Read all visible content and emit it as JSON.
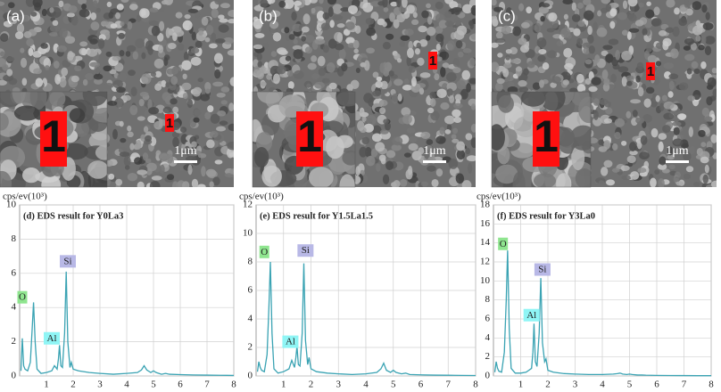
{
  "images": [
    {
      "label": "(a)",
      "marker": "1",
      "scale": "1μm"
    },
    {
      "label": "(b)",
      "marker": "1",
      "scale": "1μm"
    },
    {
      "label": "(c)",
      "marker": "1",
      "scale": "1μm"
    }
  ],
  "chart_data": [
    {
      "type": "line",
      "title": "(d) EDS result for Y0La3",
      "y_label": "cps/ev(10³)",
      "x": [
        0.05,
        0.1,
        0.15,
        0.2,
        0.3,
        0.4,
        0.47,
        0.52,
        0.58,
        0.65,
        0.8,
        1.0,
        1.2,
        1.3,
        1.4,
        1.45,
        1.49,
        1.54,
        1.6,
        1.68,
        1.74,
        1.8,
        1.88,
        1.93,
        2.0,
        2.2,
        2.6,
        3.0,
        3.5,
        4.0,
        4.4,
        4.55,
        4.65,
        4.75,
        4.9,
        5.0,
        5.1,
        5.3,
        5.45,
        5.6,
        6.0,
        6.5,
        7.0,
        7.5,
        8.0
      ],
      "series": [
        {
          "color": "#3aa3b3",
          "values": [
            0.3,
            2.2,
            0.6,
            0.4,
            0.3,
            0.8,
            2.8,
            4.3,
            2.0,
            0.4,
            0.15,
            0.2,
            0.3,
            0.6,
            0.4,
            1.0,
            1.8,
            0.6,
            0.5,
            2.5,
            6.1,
            2.0,
            0.5,
            0.8,
            0.4,
            0.3,
            0.2,
            0.15,
            0.1,
            0.15,
            0.2,
            0.35,
            0.6,
            0.35,
            0.2,
            0.3,
            0.2,
            0.1,
            0.15,
            0.1,
            0.08,
            0.06,
            0.05,
            0.04,
            0.03
          ]
        }
      ],
      "xlim": [
        0,
        8
      ],
      "ylim": [
        0,
        10
      ],
      "xticks": [
        1,
        2,
        3,
        4,
        5,
        6,
        7,
        8
      ],
      "yticks": [
        0,
        2,
        4,
        6,
        8,
        10
      ],
      "grid": true,
      "annotations": [
        {
          "text": "O",
          "color": "#8fe58f"
        },
        {
          "text": "Al",
          "color": "#8ff5f5"
        },
        {
          "text": "Si",
          "color": "#b8b8e6"
        }
      ]
    },
    {
      "type": "line",
      "title": "(e) EDS result for Y1.5La1.5",
      "y_label": "cps/ev(10³)",
      "x": [
        0.05,
        0.1,
        0.15,
        0.2,
        0.3,
        0.4,
        0.47,
        0.52,
        0.58,
        0.65,
        0.8,
        1.0,
        1.2,
        1.3,
        1.4,
        1.45,
        1.49,
        1.54,
        1.6,
        1.68,
        1.74,
        1.8,
        1.88,
        1.93,
        2.0,
        2.2,
        2.6,
        3.0,
        3.5,
        4.0,
        4.4,
        4.55,
        4.65,
        4.75,
        4.9,
        5.0,
        5.1,
        5.3,
        5.45,
        5.6,
        6.0,
        6.5,
        7.0,
        7.5,
        8.0
      ],
      "series": [
        {
          "color": "#3aa3b3",
          "values": [
            0.3,
            1.0,
            0.6,
            0.4,
            0.3,
            1.5,
            5.0,
            8.0,
            3.0,
            0.5,
            0.2,
            0.3,
            0.5,
            1.1,
            0.6,
            1.3,
            2.1,
            0.8,
            0.7,
            3.0,
            7.9,
            2.5,
            0.8,
            1.3,
            0.5,
            0.3,
            0.2,
            0.15,
            0.1,
            0.15,
            0.25,
            0.5,
            0.9,
            0.4,
            0.25,
            0.4,
            0.25,
            0.15,
            0.2,
            0.1,
            0.08,
            0.06,
            0.05,
            0.04,
            0.03
          ]
        }
      ],
      "xlim": [
        0,
        8
      ],
      "ylim": [
        0,
        12
      ],
      "xticks": [
        1,
        2,
        3,
        4,
        5,
        6,
        7,
        8
      ],
      "yticks": [
        0,
        2,
        4,
        6,
        8,
        10,
        12
      ],
      "grid": true,
      "annotations": [
        {
          "text": "O",
          "color": "#8fe58f"
        },
        {
          "text": "Al",
          "color": "#8ff5f5"
        },
        {
          "text": "Si",
          "color": "#b8b8e6"
        }
      ]
    },
    {
      "type": "line",
      "title": "(f) EDS result for Y3La0",
      "y_label": "cps/ev(10³)",
      "x": [
        0.05,
        0.1,
        0.15,
        0.2,
        0.3,
        0.4,
        0.47,
        0.52,
        0.58,
        0.65,
        0.8,
        1.0,
        1.2,
        1.3,
        1.4,
        1.45,
        1.49,
        1.54,
        1.6,
        1.68,
        1.74,
        1.8,
        1.88,
        1.93,
        2.0,
        2.2,
        2.6,
        3.0,
        3.5,
        4.0,
        4.4,
        4.55,
        4.65,
        4.75,
        4.9,
        5.0,
        5.1,
        5.3,
        5.45,
        5.6,
        6.0,
        6.5,
        7.0,
        7.5,
        8.0
      ],
      "series": [
        {
          "color": "#3aa3b3",
          "values": [
            0.4,
            1.5,
            0.8,
            0.5,
            0.4,
            2.5,
            8.0,
            13.2,
            5.0,
            0.8,
            0.3,
            0.3,
            0.4,
            0.6,
            0.8,
            2.5,
            5.5,
            1.5,
            1.0,
            4.5,
            10.3,
            3.5,
            1.5,
            1.8,
            0.6,
            0.4,
            0.25,
            0.2,
            0.15,
            0.15,
            0.2,
            0.25,
            0.3,
            0.2,
            0.15,
            0.2,
            0.15,
            0.1,
            0.1,
            0.08,
            0.06,
            0.05,
            0.04,
            0.03,
            0.03
          ]
        }
      ],
      "xlim": [
        0,
        8
      ],
      "ylim": [
        0,
        18
      ],
      "xticks": [
        1,
        2,
        3,
        4,
        5,
        6,
        7,
        8
      ],
      "yticks": [
        0,
        2,
        4,
        6,
        8,
        10,
        12,
        14,
        16,
        18
      ],
      "grid": true,
      "annotations": [
        {
          "text": "O",
          "color": "#8fe58f"
        },
        {
          "text": "Al",
          "color": "#8ff5f5"
        },
        {
          "text": "Si",
          "color": "#b8b8e6"
        }
      ]
    }
  ]
}
